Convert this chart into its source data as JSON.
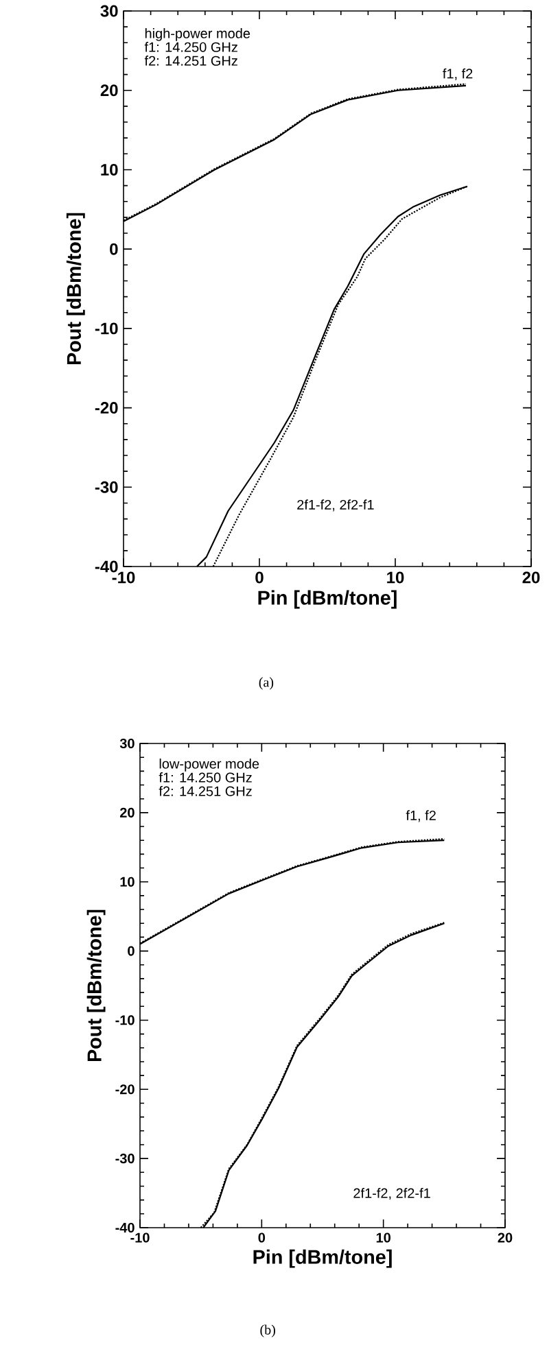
{
  "chart_data": [
    {
      "type": "line",
      "xlabel": "Pin [dBm/tone]",
      "ylabel": "Pout [dBm/tone]",
      "xlim": [
        -10,
        20
      ],
      "ylim": [
        -40,
        30
      ],
      "xticks": [
        -10,
        0,
        10,
        20
      ],
      "yticks": [
        -40,
        -30,
        -20,
        -10,
        0,
        10,
        20,
        30
      ],
      "series": [
        {
          "color": "#000000",
          "line_style": "solid",
          "x": [
            -10,
            -7.6,
            -3.3,
            1.1,
            3.8,
            6.5,
            10.2,
            15.2
          ],
          "values": [
            3.5,
            5.6,
            10,
            13.8,
            17,
            18.8,
            20,
            20.6
          ]
        },
        {
          "color": "#000000",
          "line_style": "dotted",
          "x": [
            -10,
            -7.6,
            -3.3,
            1.1,
            3.8,
            6.5,
            10.2,
            15.2
          ],
          "values": [
            3.6,
            5.7,
            10.1,
            13.9,
            17.1,
            18.9,
            20.1,
            20.8
          ]
        },
        {
          "color": "#000000",
          "line_style": "solid",
          "x": [
            -4.6,
            -3.9,
            -2.3,
            1.1,
            2.5,
            4.1,
            5.5,
            6.5,
            7.7,
            8.9,
            10.2,
            11.3,
            13.3,
            15.3
          ],
          "values": [
            -40,
            -38.8,
            -33,
            -24.4,
            -20.3,
            -13.5,
            -7.6,
            -4.7,
            -0.6,
            1.8,
            4.1,
            5.3,
            6.8,
            7.9
          ]
        },
        {
          "color": "#000000",
          "line_style": "dotted",
          "x": [
            -3.4,
            -1.5,
            0.8,
            2.5,
            4.1,
            5.8,
            7.2,
            7.8,
            9.2,
            10.5,
            13.3,
            15.3
          ],
          "values": [
            -40,
            -33.5,
            -26.5,
            -21.2,
            -14.1,
            -7,
            -3.5,
            -1.2,
            1.2,
            3.8,
            6.5,
            7.9
          ]
        }
      ],
      "annotations": [
        "high-power mode",
        "f1: 14.250 GHz",
        "f2: 14.251 GHz",
        "f1, f2",
        "2f1-f2, 2f2-f1",
        "(a)"
      ]
    },
    {
      "type": "line",
      "xlabel": "Pin [dBm/tone]",
      "ylabel": "Pout [dBm/tone]",
      "xlim": [
        -10,
        20
      ],
      "ylim": [
        -40,
        30
      ],
      "xticks": [
        -10,
        0,
        10,
        20
      ],
      "yticks": [
        -40,
        -30,
        -20,
        -10,
        0,
        10,
        20,
        30
      ],
      "series": [
        {
          "color": "#000000",
          "line_style": "solid",
          "x": [
            -10,
            -6.4,
            -2.7,
            0,
            2.9,
            5.5,
            8.2,
            11.2,
            15
          ],
          "values": [
            1,
            4.6,
            8.3,
            10.2,
            12.2,
            13.5,
            14.9,
            15.7,
            16
          ]
        },
        {
          "color": "#000000",
          "line_style": "dotted",
          "x": [
            -10,
            -6.4,
            -2.7,
            0,
            2.9,
            5.5,
            8.2,
            11.2,
            15
          ],
          "values": [
            1.1,
            4.7,
            8.4,
            10.3,
            12.3,
            13.6,
            15,
            15.8,
            16.2
          ]
        },
        {
          "color": "#000000",
          "line_style": "solid",
          "x": [
            -4.8,
            -3.8,
            -2.7,
            -1.2,
            0,
            1.4,
            2.9,
            4.8,
            6.3,
            7.4,
            8.5,
            10.4,
            12.3,
            15
          ],
          "values": [
            -40,
            -37.6,
            -31.7,
            -28.1,
            -24.4,
            -19.8,
            -13.9,
            -9.9,
            -6.6,
            -3.6,
            -2,
            0.7,
            2.3,
            4
          ]
        },
        {
          "color": "#000000",
          "line_style": "dotted",
          "x": [
            -5,
            -3.9,
            -2.7,
            -1.2,
            0,
            1.4,
            2.9,
            4.8,
            6.3,
            7.4,
            8.5,
            10.4,
            12.3,
            15
          ],
          "values": [
            -40,
            -37.8,
            -31.5,
            -28,
            -24.2,
            -19.6,
            -13.7,
            -9.7,
            -6.4,
            -3.4,
            -1.8,
            0.9,
            2.5,
            4.1
          ]
        }
      ],
      "annotations": [
        "low-power mode",
        "f1: 14.250 GHz",
        "f2: 14.251 GHz",
        "f1, f2",
        "2f1-f2, 2f2-f1",
        "(b)"
      ]
    }
  ]
}
